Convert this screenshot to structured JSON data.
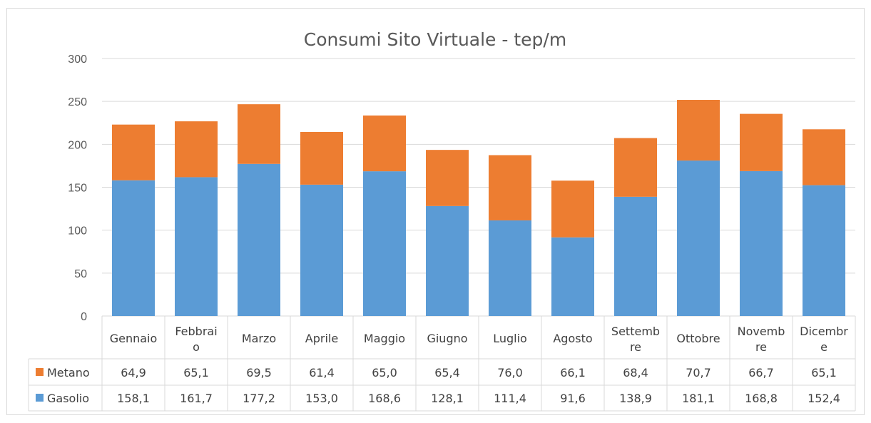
{
  "chart_data": {
    "type": "bar",
    "stacked": true,
    "title": "Consumi Sito Virtuale - tep/m",
    "categories": [
      "Gennaio",
      "Febbraio",
      "Marzo",
      "Aprile",
      "Maggio",
      "Giugno",
      "Luglio",
      "Agosto",
      "Settembre",
      "Ottobre",
      "Novembre",
      "Dicembre"
    ],
    "category_label_lines": [
      [
        "Gennaio"
      ],
      [
        "Febbrai",
        "o"
      ],
      [
        "Marzo"
      ],
      [
        "Aprile"
      ],
      [
        "Maggio"
      ],
      [
        "Giugno"
      ],
      [
        "Luglio"
      ],
      [
        "Agosto"
      ],
      [
        "Settemb",
        "re"
      ],
      [
        "Ottobre"
      ],
      [
        "Novemb",
        "re"
      ],
      [
        "Dicembr",
        "e"
      ]
    ],
    "series": [
      {
        "name": "Gasolio",
        "color": "#5b9bd5",
        "values": [
          158.1,
          161.7,
          177.2,
          153.0,
          168.6,
          128.1,
          111.4,
          91.6,
          138.9,
          181.1,
          168.8,
          152.4
        ],
        "labels": [
          "158,1",
          "161,7",
          "177,2",
          "153,0",
          "168,6",
          "128,1",
          "111,4",
          "91,6",
          "138,9",
          "181,1",
          "168,8",
          "152,4"
        ]
      },
      {
        "name": "Metano",
        "color": "#ed7d31",
        "values": [
          64.9,
          65.1,
          69.5,
          61.4,
          65.0,
          65.4,
          76.0,
          66.1,
          68.4,
          70.7,
          66.7,
          65.1
        ],
        "labels": [
          "64,9",
          "65,1",
          "69,5",
          "61,4",
          "65,0",
          "65,4",
          "76,0",
          "66,1",
          "68,4",
          "70,7",
          "66,7",
          "65,1"
        ]
      }
    ],
    "table_rows": [
      "Metano",
      "Gasolio"
    ],
    "ylim": [
      0,
      300
    ],
    "yticks": [
      0,
      50,
      100,
      150,
      200,
      250,
      300
    ],
    "grid": true,
    "legend": "data-table"
  }
}
